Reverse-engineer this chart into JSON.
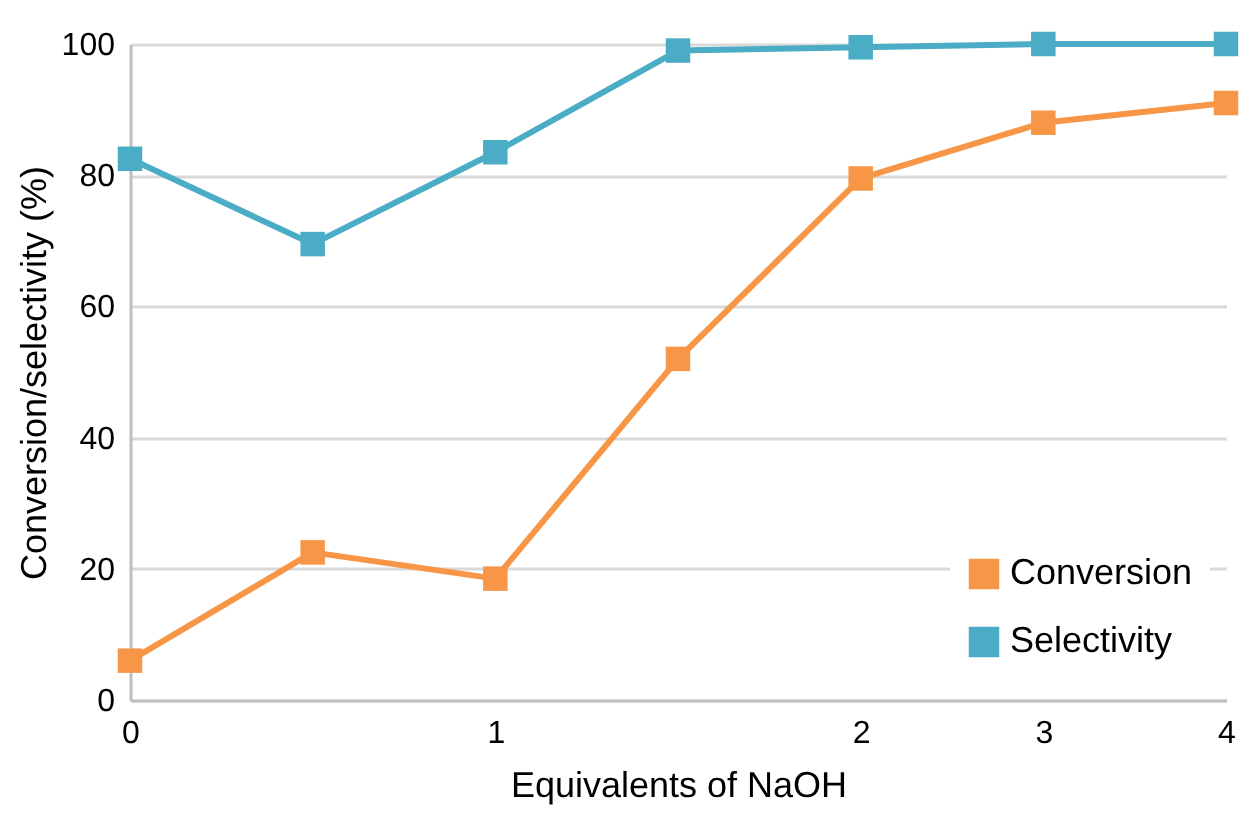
{
  "chart_data": {
    "type": "line",
    "xlabel": "Equivalents of NaOH",
    "ylabel": "Conversion/selectivity (%)",
    "categories": [
      "0",
      null,
      "1",
      null,
      "2",
      "3",
      "4"
    ],
    "series": [
      {
        "name": "Conversion",
        "color": "#f79646",
        "values": [
          6,
          22.5,
          18.5,
          52,
          79.5,
          88,
          91
        ]
      },
      {
        "name": "Selectivity",
        "color": "#4bacc6",
        "values": [
          82.5,
          69.5,
          83.5,
          99,
          99.5,
          100,
          100
        ]
      }
    ],
    "ylim": [
      0,
      100
    ],
    "yticks": [
      0,
      20,
      40,
      60,
      80,
      100
    ],
    "grid": "y",
    "legend": "bottom right",
    "marker": "square"
  }
}
